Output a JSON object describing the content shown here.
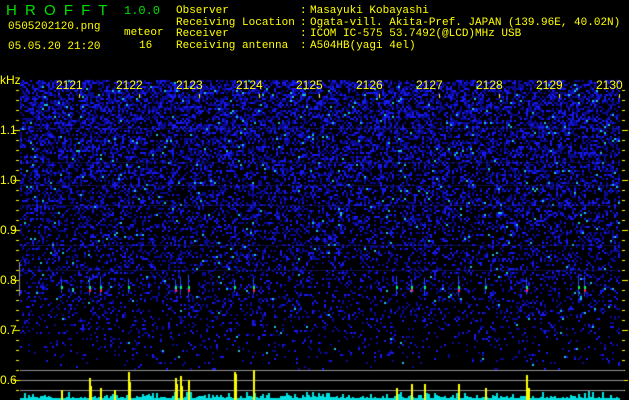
{
  "app": {
    "title": "H R O F F T",
    "version": "1.0.0"
  },
  "file": {
    "name": "0505202120.png",
    "datetime": "05.05.20 21:20"
  },
  "meteor": {
    "label": "meteor",
    "count": "16"
  },
  "info": [
    {
      "label": "Observer",
      "value": "Masayuki Kobayashi"
    },
    {
      "label": "Receiving Location",
      "value": "Ogata-vill. Akita-Pref. JAPAN (139.96E, 40.02N)"
    },
    {
      "label": "Receiver",
      "value": "ICOM IC-575 53.7492(@LCD)MHz USB"
    },
    {
      "label": "Receiving antenna",
      "value": "A504HB(yagi 4el)"
    }
  ],
  "chart_data": {
    "type": "heatmap",
    "yunit": "kHz",
    "yticks": [
      "1.1",
      "1.0",
      "0.9",
      "0.8",
      "0.7",
      "0.6"
    ],
    "xticks": [
      "2121",
      "2122",
      "2123",
      "2124",
      "2125",
      "2126",
      "2127",
      "2128",
      "2129",
      "2130"
    ],
    "colors": {
      "background": "#000000",
      "noise": "#1010e0",
      "text": "#ffff00",
      "bars": "#00ffff",
      "meteor_bars": "#ffff00"
    }
  }
}
